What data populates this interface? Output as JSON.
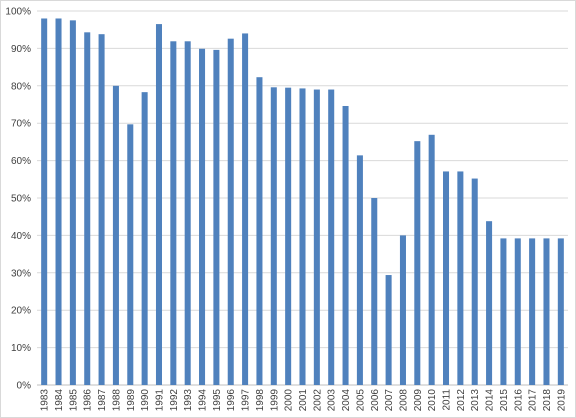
{
  "chart_data": {
    "type": "bar",
    "title": "",
    "xlabel": "",
    "ylabel": "",
    "categories": [
      "1983",
      "1984",
      "1985",
      "1986",
      "1987",
      "1988",
      "1989",
      "1990",
      "1991",
      "1992",
      "1993",
      "1994",
      "1995",
      "1996",
      "1997",
      "1998",
      "1999",
      "2000",
      "2001",
      "2002",
      "2003",
      "2004",
      "2005",
      "2006",
      "2007",
      "2008",
      "2009",
      "2010",
      "2011",
      "2012",
      "2013",
      "2014",
      "2015",
      "2016",
      "2017",
      "2018",
      "2019"
    ],
    "values": [
      98,
      98,
      97.5,
      94.3,
      93.8,
      80,
      69.7,
      78.3,
      96.5,
      91.9,
      91.9,
      89.9,
      89.6,
      92.6,
      94,
      82.3,
      79.6,
      79.5,
      79.3,
      79,
      79,
      74.6,
      61.4,
      50,
      29.4,
      40,
      65.2,
      66.9,
      57.1,
      57.1,
      55.2,
      43.8,
      39.2,
      39.2,
      39.2,
      39.2,
      39.2
    ],
    "ylim": [
      0,
      100
    ],
    "yticks": [
      "0%",
      "10%",
      "20%",
      "30%",
      "40%",
      "50%",
      "60%",
      "70%",
      "80%",
      "90%",
      "100%"
    ],
    "grid": true,
    "legend": "none",
    "bar_color": "#4f81bd",
    "grid_color": "#d9d9d9"
  }
}
